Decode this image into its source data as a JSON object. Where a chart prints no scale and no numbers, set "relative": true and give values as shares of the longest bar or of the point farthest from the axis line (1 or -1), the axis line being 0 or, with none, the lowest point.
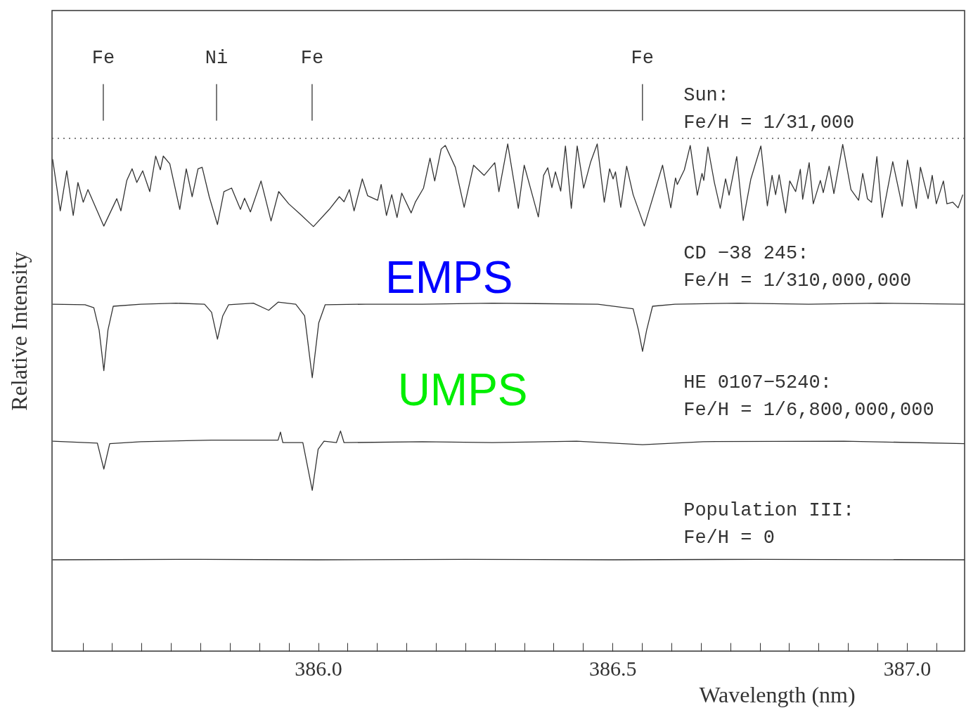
{
  "chart_data": {
    "type": "line",
    "relative": true,
    "xlabel": "Wavelength (nm)",
    "ylabel": "Relative Intensity",
    "xlim": [
      385.548,
      387.098
    ],
    "xticks": [
      {
        "value": 385.6,
        "label": null
      },
      {
        "value": 385.65,
        "label": null
      },
      {
        "value": 385.7,
        "label": null
      },
      {
        "value": 385.75,
        "label": null
      },
      {
        "value": 385.8,
        "label": null
      },
      {
        "value": 385.85,
        "label": null
      },
      {
        "value": 385.9,
        "label": null
      },
      {
        "value": 385.95,
        "label": null
      },
      {
        "value": 386,
        "label": "386.0"
      },
      {
        "value": 386.05,
        "label": null
      },
      {
        "value": 386.1,
        "label": null
      },
      {
        "value": 386.15,
        "label": null
      },
      {
        "value": 386.2,
        "label": null
      },
      {
        "value": 386.25,
        "label": null
      },
      {
        "value": 386.3,
        "label": null
      },
      {
        "value": 386.35,
        "label": null
      },
      {
        "value": 386.4,
        "label": null
      },
      {
        "value": 386.45,
        "label": null
      },
      386.5,
      {
        "value": 386.55,
        "label": null
      },
      {
        "value": 386.6,
        "label": null
      },
      {
        "value": 386.65,
        "label": null
      },
      {
        "value": 386.7,
        "label": null
      },
      {
        "value": 386.75,
        "label": null
      },
      {
        "value": 386.8,
        "label": null
      },
      {
        "value": 386.85,
        "label": null
      },
      {
        "value": 386.9,
        "label": null
      },
      {
        "value": 386.95,
        "label": null
      },
      {
        "value": 387,
        "label": "387.0"
      },
      {
        "value": 387.05,
        "label": null
      }
    ],
    "tick_labels": "x",
    "marker": "none",
    "line_style": "solid",
    "series": [
      {
        "name": "Sun:\nFe/H = 1/31,000",
        "color": "#333333",
        "x": [
          385.549,
          385.562,
          385.573,
          385.584,
          385.592,
          385.601,
          385.609,
          385.636,
          385.658,
          385.665,
          385.675,
          385.684,
          385.692,
          385.702,
          385.714,
          385.724,
          385.732,
          385.737,
          385.748,
          385.765,
          385.776,
          385.786,
          385.796,
          385.803,
          385.815,
          385.829,
          385.84,
          385.853,
          385.868,
          385.875,
          385.885,
          385.903,
          385.92,
          385.933,
          385.95,
          385.97,
          385.992,
          386.019,
          386.036,
          386.044,
          386.053,
          386.061,
          386.075,
          386.084,
          386.101,
          386.107,
          386.116,
          386.125,
          386.134,
          386.142,
          386.158,
          386.165,
          386.179,
          386.19,
          386.198,
          386.209,
          386.216,
          386.233,
          386.248,
          386.264,
          386.282,
          386.3,
          386.307,
          386.322,
          386.34,
          386.35,
          386.374,
          386.383,
          386.39,
          386.397,
          386.403,
          386.412,
          386.42,
          386.43,
          386.44,
          386.451,
          386.463,
          386.474,
          386.486,
          386.495,
          386.501,
          386.505,
          386.514,
          386.524,
          386.535,
          386.554,
          386.585,
          386.599,
          386.607,
          386.61,
          386.622,
          386.632,
          386.644,
          386.652,
          386.655,
          386.662,
          386.673,
          386.683,
          386.692,
          386.698,
          386.711,
          386.722,
          386.735,
          386.752,
          386.763,
          386.771,
          386.777,
          386.783,
          386.794,
          386.801,
          386.811,
          386.819,
          386.823,
          386.834,
          386.841,
          386.853,
          386.858,
          386.868,
          386.876,
          386.891,
          386.905,
          386.918,
          386.925,
          386.933,
          386.94,
          386.949,
          386.958,
          386.976,
          386.992,
          387.001,
          387.016,
          387.023,
          387.036,
          387.043,
          387.05,
          387.062,
          387.068,
          387.078,
          387.087,
          387.095
        ],
        "values": [
          0.97,
          0.868,
          0.947,
          0.859,
          0.924,
          0.885,
          0.91,
          0.838,
          0.892,
          0.868,
          0.928,
          0.951,
          0.924,
          0.947,
          0.906,
          0.976,
          0.949,
          0.976,
          0.961,
          0.871,
          0.951,
          0.896,
          0.951,
          0.954,
          0.896,
          0.841,
          0.906,
          0.913,
          0.871,
          0.893,
          0.866,
          0.927,
          0.848,
          0.906,
          0.882,
          0.861,
          0.837,
          0.871,
          0.896,
          0.886,
          0.91,
          0.868,
          0.931,
          0.898,
          0.889,
          0.92,
          0.859,
          0.9,
          0.855,
          0.903,
          0.864,
          0.885,
          0.913,
          0.972,
          0.927,
          0.99,
          0.997,
          0.954,
          0.875,
          0.958,
          0.938,
          0.963,
          0.906,
          1.0,
          0.873,
          0.958,
          0.856,
          0.938,
          0.953,
          0.914,
          0.945,
          0.907,
          0.996,
          0.873,
          0.996,
          0.913,
          0.965,
          1.0,
          0.885,
          0.951,
          0.931,
          0.945,
          0.875,
          0.956,
          0.9,
          0.838,
          0.958,
          0.874,
          0.933,
          0.92,
          0.949,
          0.997,
          0.899,
          0.942,
          0.928,
          0.994,
          0.924,
          0.873,
          0.931,
          0.899,
          0.975,
          0.849,
          0.931,
          0.996,
          0.878,
          0.938,
          0.9,
          0.939,
          0.864,
          0.927,
          0.906,
          0.95,
          0.891,
          0.963,
          0.882,
          0.928,
          0.904,
          0.956,
          0.902,
          0.999,
          0.91,
          0.889,
          0.942,
          0.892,
          0.885,
          0.975,
          0.855,
          0.965,
          0.877,
          0.968,
          0.873,
          0.954,
          0.892,
          0.938,
          0.882,
          0.927,
          0.882,
          0.885,
          0.874,
          0.9
        ]
      },
      {
        "name": "CD −38 245:\nFe/H = 1/310,000,000",
        "color": "#333333",
        "x": [
          385.549,
          385.604,
          385.619,
          385.628,
          385.636,
          385.643,
          385.652,
          385.699,
          385.759,
          385.807,
          385.819,
          385.829,
          385.838,
          385.848,
          385.89,
          385.916,
          385.932,
          385.962,
          385.977,
          385.99,
          386.001,
          386.012,
          386.081,
          386.177,
          386.296,
          386.475,
          386.535,
          386.544,
          386.551,
          386.558,
          386.568,
          386.606,
          386.714,
          386.833,
          386.952,
          387.098
        ],
        "values": [
          0.684,
          0.683,
          0.677,
          0.633,
          0.553,
          0.633,
          0.68,
          0.684,
          0.686,
          0.684,
          0.668,
          0.615,
          0.661,
          0.683,
          0.686,
          0.672,
          0.688,
          0.684,
          0.661,
          0.539,
          0.647,
          0.683,
          0.684,
          0.684,
          0.686,
          0.684,
          0.675,
          0.633,
          0.591,
          0.633,
          0.68,
          0.684,
          0.686,
          0.684,
          0.686,
          0.684
        ]
      },
      {
        "name": "HE 0107−5240:\nFe/H = 1/6,800,000,000",
        "color": "#333333",
        "x": [
          385.549,
          385.604,
          385.625,
          385.636,
          385.646,
          385.699,
          385.819,
          385.932,
          385.936,
          385.94,
          385.974,
          385.99,
          386.0,
          386.01,
          386.031,
          386.038,
          386.044,
          386.177,
          386.296,
          386.439,
          386.551,
          386.654,
          386.893,
          387.098
        ],
        "values": [
          0.414,
          0.411,
          0.41,
          0.359,
          0.409,
          0.413,
          0.416,
          0.416,
          0.432,
          0.411,
          0.411,
          0.317,
          0.398,
          0.414,
          0.411,
          0.434,
          0.411,
          0.413,
          0.411,
          0.414,
          0.407,
          0.413,
          0.414,
          0.409
        ]
      },
      {
        "name": "Population III:\nFe/H = 0",
        "color": "#333333",
        "x": [
          385.549,
          385.8,
          386.0,
          386.25,
          386.5,
          386.75,
          387.098
        ],
        "values": [
          0.18,
          0.181,
          0.18,
          0.181,
          0.18,
          0.181,
          0.18
        ]
      }
    ],
    "ref_lines": [
      {
        "axis": "y",
        "value": 1.011,
        "line_style": "dotted",
        "color": "#555555"
      }
    ],
    "annotations": [
      "Fe",
      "Ni",
      "Fe",
      "Fe",
      "EMPS",
      "UMPS"
    ]
  }
}
